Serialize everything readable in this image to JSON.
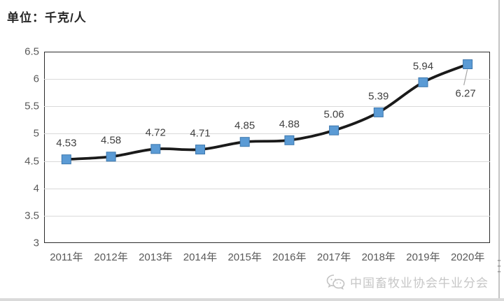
{
  "unit_label": "单位：千克/人",
  "watermark": {
    "icon": "wechat-icon",
    "text": "中国畜牧业协会牛业分会"
  },
  "chart_data": {
    "type": "line",
    "title": "",
    "xlabel": "",
    "ylabel": "单位：千克/人",
    "categories": [
      "2011年",
      "2012年",
      "2013年",
      "2014年",
      "2015年",
      "2016年",
      "2017年",
      "2018年",
      "2019年",
      "2020年"
    ],
    "values": [
      4.53,
      4.58,
      4.72,
      4.71,
      4.85,
      4.88,
      5.06,
      5.39,
      5.94,
      6.27
    ],
    "data_labels": [
      "4.53",
      "4.58",
      "4.72",
      "4.71",
      "4.85",
      "4.88",
      "5.06",
      "5.39",
      "5.94",
      "6.27"
    ],
    "ylim": [
      3,
      6.5
    ],
    "ytick_step": 0.5,
    "yticks": [
      "6.5",
      "6",
      "5.5",
      "5",
      "4.5",
      "4",
      "3.5",
      "3"
    ],
    "grid": true,
    "legend": "none",
    "smooth_line": true,
    "colors": {
      "line": "#1a1a1a",
      "marker": "#5b9bd5",
      "marker_border": "#3d77ad",
      "gridline": "#d9d9d9",
      "plot_border": "#2b2b2b",
      "axis_text": "#595959",
      "data_label_text": "#404040",
      "leader_line": "#a6a6a6"
    }
  }
}
